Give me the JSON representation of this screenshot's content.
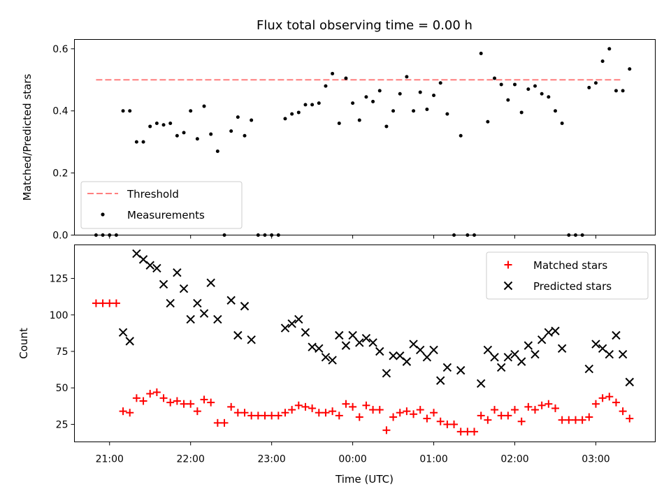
{
  "figure": {
    "title": "Flux total observing time = 0.00 h",
    "xlabel": "Time (UTC)"
  },
  "colors": {
    "threshold": "#ff7f7f",
    "measurements": "#000000",
    "matched": "#ff0000",
    "predicted": "#000000"
  },
  "chart_data": [
    {
      "type": "scatter",
      "panel": "top",
      "xlabel": "",
      "ylabel": "Matched/Predicted stars",
      "xlim": [
        "20:34",
        "27:44"
      ],
      "ylim": [
        0,
        0.63
      ],
      "yticks": [
        0.0,
        0.2,
        0.4,
        0.6
      ],
      "ytick_labels": [
        "0.0",
        "0.2",
        "0.4",
        "0.6"
      ],
      "legend": {
        "location": "lower-left",
        "entries": [
          "Threshold",
          "Measurements"
        ]
      },
      "threshold": {
        "name": "Threshold",
        "value": 0.5,
        "x": [
          "20:50",
          "27:20"
        ]
      },
      "series": [
        {
          "name": "Measurements",
          "marker": "dot",
          "points": [
            [
              "20:50",
              0.0
            ],
            [
              "20:55",
              0.0
            ],
            [
              "21:00",
              0.0
            ],
            [
              "21:05",
              0.0
            ],
            [
              "21:10",
              0.4
            ],
            [
              "21:15",
              0.4
            ],
            [
              "21:20",
              0.3
            ],
            [
              "21:25",
              0.3
            ],
            [
              "21:30",
              0.35
            ],
            [
              "21:35",
              0.36
            ],
            [
              "21:40",
              0.355
            ],
            [
              "21:45",
              0.36
            ],
            [
              "21:50",
              0.32
            ],
            [
              "21:55",
              0.33
            ],
            [
              "22:00",
              0.4
            ],
            [
              "22:05",
              0.31
            ],
            [
              "22:10",
              0.415
            ],
            [
              "22:15",
              0.325
            ],
            [
              "22:20",
              0.27
            ],
            [
              "22:25",
              0.0
            ],
            [
              "22:30",
              0.335
            ],
            [
              "22:35",
              0.38
            ],
            [
              "22:40",
              0.32
            ],
            [
              "22:45",
              0.37
            ],
            [
              "22:50",
              0.0
            ],
            [
              "22:55",
              0.0
            ],
            [
              "23:00",
              0.0
            ],
            [
              "23:05",
              0.0
            ],
            [
              "23:10",
              0.375
            ],
            [
              "23:15",
              0.39
            ],
            [
              "23:20",
              0.395
            ],
            [
              "23:25",
              0.42
            ],
            [
              "23:30",
              0.42
            ],
            [
              "23:35",
              0.425
            ],
            [
              "23:40",
              0.48
            ],
            [
              "23:45",
              0.52
            ],
            [
              "23:50",
              0.36
            ],
            [
              "23:55",
              0.505
            ],
            [
              "24:00",
              0.425
            ],
            [
              "24:05",
              0.37
            ],
            [
              "24:10",
              0.445
            ],
            [
              "24:15",
              0.43
            ],
            [
              "24:20",
              0.465
            ],
            [
              "24:25",
              0.35
            ],
            [
              "24:30",
              0.4
            ],
            [
              "24:35",
              0.455
            ],
            [
              "24:40",
              0.51
            ],
            [
              "24:45",
              0.4
            ],
            [
              "24:50",
              0.46
            ],
            [
              "24:55",
              0.405
            ],
            [
              "25:00",
              0.45
            ],
            [
              "25:05",
              0.49
            ],
            [
              "25:10",
              0.39
            ],
            [
              "25:15",
              0.0
            ],
            [
              "25:20",
              0.32
            ],
            [
              "25:25",
              0.0
            ],
            [
              "25:30",
              0.0
            ],
            [
              "25:35",
              0.585
            ],
            [
              "25:40",
              0.365
            ],
            [
              "25:45",
              0.505
            ],
            [
              "25:50",
              0.485
            ],
            [
              "25:55",
              0.435
            ],
            [
              "26:00",
              0.485
            ],
            [
              "26:05",
              0.395
            ],
            [
              "26:10",
              0.47
            ],
            [
              "26:15",
              0.48
            ],
            [
              "26:20",
              0.455
            ],
            [
              "26:25",
              0.445
            ],
            [
              "26:30",
              0.4
            ],
            [
              "26:35",
              0.36
            ],
            [
              "26:40",
              0.0
            ],
            [
              "26:45",
              0.0
            ],
            [
              "26:50",
              0.0
            ],
            [
              "26:55",
              0.475
            ],
            [
              "27:00",
              0.49
            ],
            [
              "27:05",
              0.56
            ],
            [
              "27:10",
              0.6
            ],
            [
              "27:15",
              0.465
            ],
            [
              "27:20",
              0.465
            ],
            [
              "27:25",
              0.535
            ]
          ]
        }
      ]
    },
    {
      "type": "scatter",
      "panel": "bottom",
      "xlabel": "Time (UTC)",
      "ylabel": "Count",
      "xlim": [
        "20:34",
        "27:44"
      ],
      "ylim": [
        13,
        148
      ],
      "yticks": [
        25,
        50,
        75,
        100,
        125
      ],
      "ytick_labels": [
        "25",
        "50",
        "75",
        "100",
        "125"
      ],
      "xticks": [
        "21:00",
        "22:00",
        "23:00",
        "24:00",
        "25:00",
        "26:00",
        "27:00"
      ],
      "xtick_labels": [
        "21:00",
        "22:00",
        "23:00",
        "00:00",
        "01:00",
        "02:00",
        "03:00"
      ],
      "legend": {
        "location": "top-right",
        "entries": [
          "Matched stars",
          "Predicted stars"
        ]
      },
      "series": [
        {
          "name": "Matched stars",
          "marker": "plus",
          "points": [
            [
              "20:50",
              108
            ],
            [
              "20:55",
              108
            ],
            [
              "21:00",
              108
            ],
            [
              "21:05",
              108
            ],
            [
              "21:10",
              34
            ],
            [
              "21:15",
              33
            ],
            [
              "21:20",
              43
            ],
            [
              "21:25",
              41
            ],
            [
              "21:30",
              46
            ],
            [
              "21:35",
              47
            ],
            [
              "21:40",
              43
            ],
            [
              "21:45",
              40
            ],
            [
              "21:50",
              41
            ],
            [
              "21:55",
              39
            ],
            [
              "22:00",
              39
            ],
            [
              "22:05",
              34
            ],
            [
              "22:10",
              42
            ],
            [
              "22:15",
              40
            ],
            [
              "22:20",
              26
            ],
            [
              "22:25",
              26
            ],
            [
              "22:30",
              37
            ],
            [
              "22:35",
              33
            ],
            [
              "22:40",
              33
            ],
            [
              "22:45",
              31
            ],
            [
              "22:50",
              31
            ],
            [
              "22:55",
              31
            ],
            [
              "23:00",
              31
            ],
            [
              "23:05",
              31
            ],
            [
              "23:10",
              33
            ],
            [
              "23:15",
              35
            ],
            [
              "23:20",
              38
            ],
            [
              "23:25",
              37
            ],
            [
              "23:30",
              36
            ],
            [
              "23:35",
              33
            ],
            [
              "23:40",
              33
            ],
            [
              "23:45",
              34
            ],
            [
              "23:50",
              31
            ],
            [
              "23:55",
              39
            ],
            [
              "24:00",
              37
            ],
            [
              "24:05",
              30
            ],
            [
              "24:10",
              38
            ],
            [
              "24:15",
              35
            ],
            [
              "24:20",
              35
            ],
            [
              "24:25",
              21
            ],
            [
              "24:30",
              30
            ],
            [
              "24:35",
              33
            ],
            [
              "24:40",
              34
            ],
            [
              "24:45",
              32
            ],
            [
              "24:50",
              35
            ],
            [
              "24:55",
              29
            ],
            [
              "25:00",
              33
            ],
            [
              "25:05",
              27
            ],
            [
              "25:10",
              25
            ],
            [
              "25:15",
              25
            ],
            [
              "25:20",
              20
            ],
            [
              "25:25",
              20
            ],
            [
              "25:30",
              20
            ],
            [
              "25:35",
              31
            ],
            [
              "25:40",
              28
            ],
            [
              "25:45",
              35
            ],
            [
              "25:50",
              31
            ],
            [
              "25:55",
              31
            ],
            [
              "26:00",
              35
            ],
            [
              "26:05",
              27
            ],
            [
              "26:10",
              37
            ],
            [
              "26:15",
              35
            ],
            [
              "26:20",
              38
            ],
            [
              "26:25",
              39
            ],
            [
              "26:30",
              36
            ],
            [
              "26:35",
              28
            ],
            [
              "26:40",
              28
            ],
            [
              "26:45",
              28
            ],
            [
              "26:50",
              28
            ],
            [
              "26:55",
              30
            ],
            [
              "27:00",
              39
            ],
            [
              "27:05",
              43
            ],
            [
              "27:10",
              44
            ],
            [
              "27:15",
              40
            ],
            [
              "27:20",
              34
            ],
            [
              "27:25",
              29
            ]
          ]
        },
        {
          "name": "Predicted stars",
          "marker": "x",
          "points": [
            [
              "21:10",
              88
            ],
            [
              "21:15",
              82
            ],
            [
              "21:20",
              142
            ],
            [
              "21:25",
              138
            ],
            [
              "21:30",
              134
            ],
            [
              "21:35",
              132
            ],
            [
              "21:40",
              121
            ],
            [
              "21:45",
              108
            ],
            [
              "21:50",
              129
            ],
            [
              "21:55",
              118
            ],
            [
              "22:00",
              97
            ],
            [
              "22:05",
              108
            ],
            [
              "22:10",
              101
            ],
            [
              "22:15",
              122
            ],
            [
              "22:20",
              97
            ],
            [
              "22:30",
              110
            ],
            [
              "22:35",
              86
            ],
            [
              "22:40",
              106
            ],
            [
              "22:45",
              83
            ],
            [
              "23:10",
              91
            ],
            [
              "23:15",
              94
            ],
            [
              "23:20",
              97
            ],
            [
              "23:25",
              88
            ],
            [
              "23:30",
              78
            ],
            [
              "23:35",
              77
            ],
            [
              "23:40",
              71
            ],
            [
              "23:45",
              69
            ],
            [
              "23:50",
              86
            ],
            [
              "23:55",
              79
            ],
            [
              "24:00",
              86
            ],
            [
              "24:05",
              81
            ],
            [
              "24:10",
              84
            ],
            [
              "24:15",
              81
            ],
            [
              "24:20",
              75
            ],
            [
              "24:25",
              60
            ],
            [
              "24:30",
              72
            ],
            [
              "24:35",
              72
            ],
            [
              "24:40",
              68
            ],
            [
              "24:45",
              80
            ],
            [
              "24:50",
              76
            ],
            [
              "24:55",
              71
            ],
            [
              "25:00",
              76
            ],
            [
              "25:05",
              55
            ],
            [
              "25:10",
              64
            ],
            [
              "25:20",
              62
            ],
            [
              "25:35",
              53
            ],
            [
              "25:40",
              76
            ],
            [
              "25:45",
              71
            ],
            [
              "25:50",
              64
            ],
            [
              "25:55",
              71
            ],
            [
              "26:00",
              73
            ],
            [
              "26:05",
              68
            ],
            [
              "26:10",
              79
            ],
            [
              "26:15",
              73
            ],
            [
              "26:20",
              83
            ],
            [
              "26:25",
              88
            ],
            [
              "26:30",
              89
            ],
            [
              "26:35",
              77
            ],
            [
              "26:55",
              63
            ],
            [
              "27:00",
              80
            ],
            [
              "27:05",
              77
            ],
            [
              "27:10",
              73
            ],
            [
              "27:15",
              86
            ],
            [
              "27:20",
              73
            ],
            [
              "27:25",
              54
            ]
          ]
        }
      ]
    }
  ]
}
